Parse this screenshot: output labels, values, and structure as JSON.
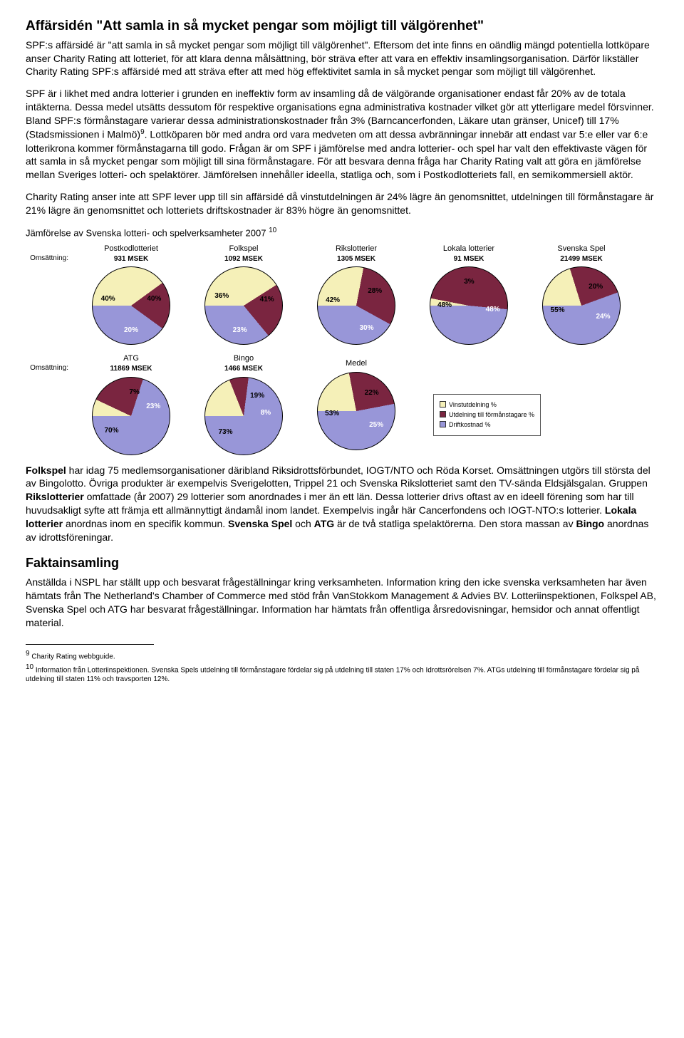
{
  "colors": {
    "slice1": "#f5f0b8",
    "slice2": "#7a2540",
    "slice3": "#9896d8"
  },
  "title": "Affärsidén \"Att samla in så mycket pengar som möjligt till välgörenhet\"",
  "intro": "SPF:s affärsidé är \"att samla in så mycket pengar som möjligt till välgörenhet\". Eftersom det inte finns en oändlig mängd potentiella lottköpare anser Charity Rating att lotteriet, för att klara denna målsättning, bör sträva efter att vara en effektiv insamlingsorganisation. Därför likställer Charity Rating SPF:s affärsidé med att sträva efter att med hög effektivitet samla in så mycket pengar som möjligt till välgörenhet.",
  "p2_a": "SPF är i likhet med andra lotterier i grunden en ineffektiv form av insamling då de välgörande organisationer endast får 20% av de totala intäkterna. Dessa medel utsätts dessutom för respektive organisations egna administrativa kostnader vilket gör att ytterligare medel försvinner. Bland SPF:s förmånstagare varierar dessa administrationskostnader från 3% (Barncancerfonden, Läkare utan gränser, Unicef) till 17% (Stadsmissionen i Malmö)",
  "p2_sup": "9",
  "p2_b": ". Lottköparen bör med andra ord vara medveten om att dessa avbränningar innebär att endast var 5:e eller var 6:e lotterikrona kommer förmånstagarna till godo. Frågan är om SPF i jämförelse med andra lotterier- och spel har valt den effektivaste vägen för att samla in så mycket pengar som möjligt till sina förmånstagare. För att besvara denna fråga har Charity Rating valt att göra en jämförelse mellan Sveriges lotteri- och spelaktörer. Jämförelsen innehåller ideella, statliga och, som i Postkodlotteriets fall, en semikommersiell aktör.",
  "p3": "Charity Rating anser inte att SPF lever upp till sin affärsidé då vinstutdelningen är 24% lägre än genomsnittet, utdelningen till förmånstagare är 21% lägre än genomsnittet och lotteriets driftskostnader är 83% högre än genomsnittet.",
  "charts_title": "Jämförelse av Svenska lotteri- och spelverksamheter 2007",
  "charts_title_sup": "10",
  "row_label": "Omsättning:",
  "charts_row1": [
    {
      "name": "Postkodlotteriet",
      "sub": "931 MSEK",
      "slices": [
        40,
        20,
        40
      ],
      "labels": [
        "40%",
        "20%",
        "40%"
      ]
    },
    {
      "name": "Folkspel",
      "sub": "1092 MSEK",
      "slices": [
        41,
        23,
        36
      ],
      "labels": [
        "41%",
        "23%",
        "36%"
      ]
    },
    {
      "name": "Rikslotterier",
      "sub": "1305 MSEK",
      "slices": [
        28,
        30,
        42
      ],
      "labels": [
        "28%",
        "30%",
        "42%"
      ]
    },
    {
      "name": "Lokala lotterier",
      "sub": "91 MSEK",
      "slices": [
        3,
        48,
        48
      ],
      "labels": [
        "3%",
        "48%",
        "48%"
      ]
    },
    {
      "name": "Svenska Spel",
      "sub": "21499 MSEK",
      "slices": [
        20,
        24,
        55
      ],
      "labels": [
        "20%",
        "24%",
        "55%"
      ]
    }
  ],
  "charts_row2": [
    {
      "name": "ATG",
      "sub": "11869 MSEK",
      "slices": [
        7,
        23,
        70
      ],
      "labels": [
        "7%",
        "23%",
        "70%"
      ]
    },
    {
      "name": "Bingo",
      "sub": "1466 MSEK",
      "slices": [
        19,
        8,
        73
      ],
      "labels": [
        "19%",
        "8%",
        "73%"
      ]
    },
    {
      "name": "Medel",
      "sub": "",
      "slices": [
        22,
        25,
        53
      ],
      "labels": [
        "22%",
        "25%",
        "53%"
      ]
    }
  ],
  "legend": {
    "items": [
      {
        "color": "#f5f0b8",
        "label": "Vinstutdelning %"
      },
      {
        "color": "#7a2540",
        "label": "Utdelning till förmånstagare %"
      },
      {
        "color": "#9896d8",
        "label": "Driftkostnad %"
      }
    ]
  },
  "p4_bold1": "Folkspel",
  "p4_a": " har idag 75 medlemsorganisationer däribland Riksidrottsförbundet, IOGT/NTO och Röda Korset. Omsättningen utgörs till största del av Bingolotto. Övriga produkter är exempelvis Sverigelotten, Trippel 21 och Svenska Rikslotteriet samt den TV-sända Eldsjälsgalan. Gruppen ",
  "p4_bold2": "Rikslotterier",
  "p4_b": " omfattade (år 2007) 29 lotterier som anordnades i mer än ett län. Dessa lotterier drivs oftast av en ideell förening som har till huvudsakligt syfte att främja ett allmännyttigt ändamål inom landet. Exempelvis ingår här Cancerfondens och IOGT-NTO:s lotterier. ",
  "p4_bold3": "Lokala lotterier",
  "p4_c": " anordnas inom en specifik kommun. ",
  "p4_bold4": "Svenska Spel",
  "p4_d": " och ",
  "p4_bold5": "ATG",
  "p4_e": " är de två statliga spelaktörerna. Den stora massan av ",
  "p4_bold6": "Bingo",
  "p4_f": " anordnas av idrottsföreningar.",
  "h2": "Faktainsamling",
  "p5": "Anställda i NSPL har ställt upp och besvarat frågeställningar kring verksamheten. Information kring den icke svenska verksamheten har även hämtats från The Netherland's Chamber of Commerce med stöd från VanStokkom Management & Advies BV. Lotteriinspektionen, Folkspel AB, Svenska Spel och ATG har besvarat frågeställningar. Information har hämtats från offentliga årsredovisningar, hemsidor och annat offentligt material.",
  "fn1_sup": "9",
  "fn1": " Charity Rating webbguide.",
  "fn2_sup": "10",
  "fn2": " Information från Lotteriinspektionen. Svenska Spels utdelning till förmånstagare fördelar sig på utdelning till staten 17% och Idrottsrörelsen 7%. ATGs utdelning till förmånstagare fördelar sig på utdelning till staten 11% och travsporten 12%."
}
